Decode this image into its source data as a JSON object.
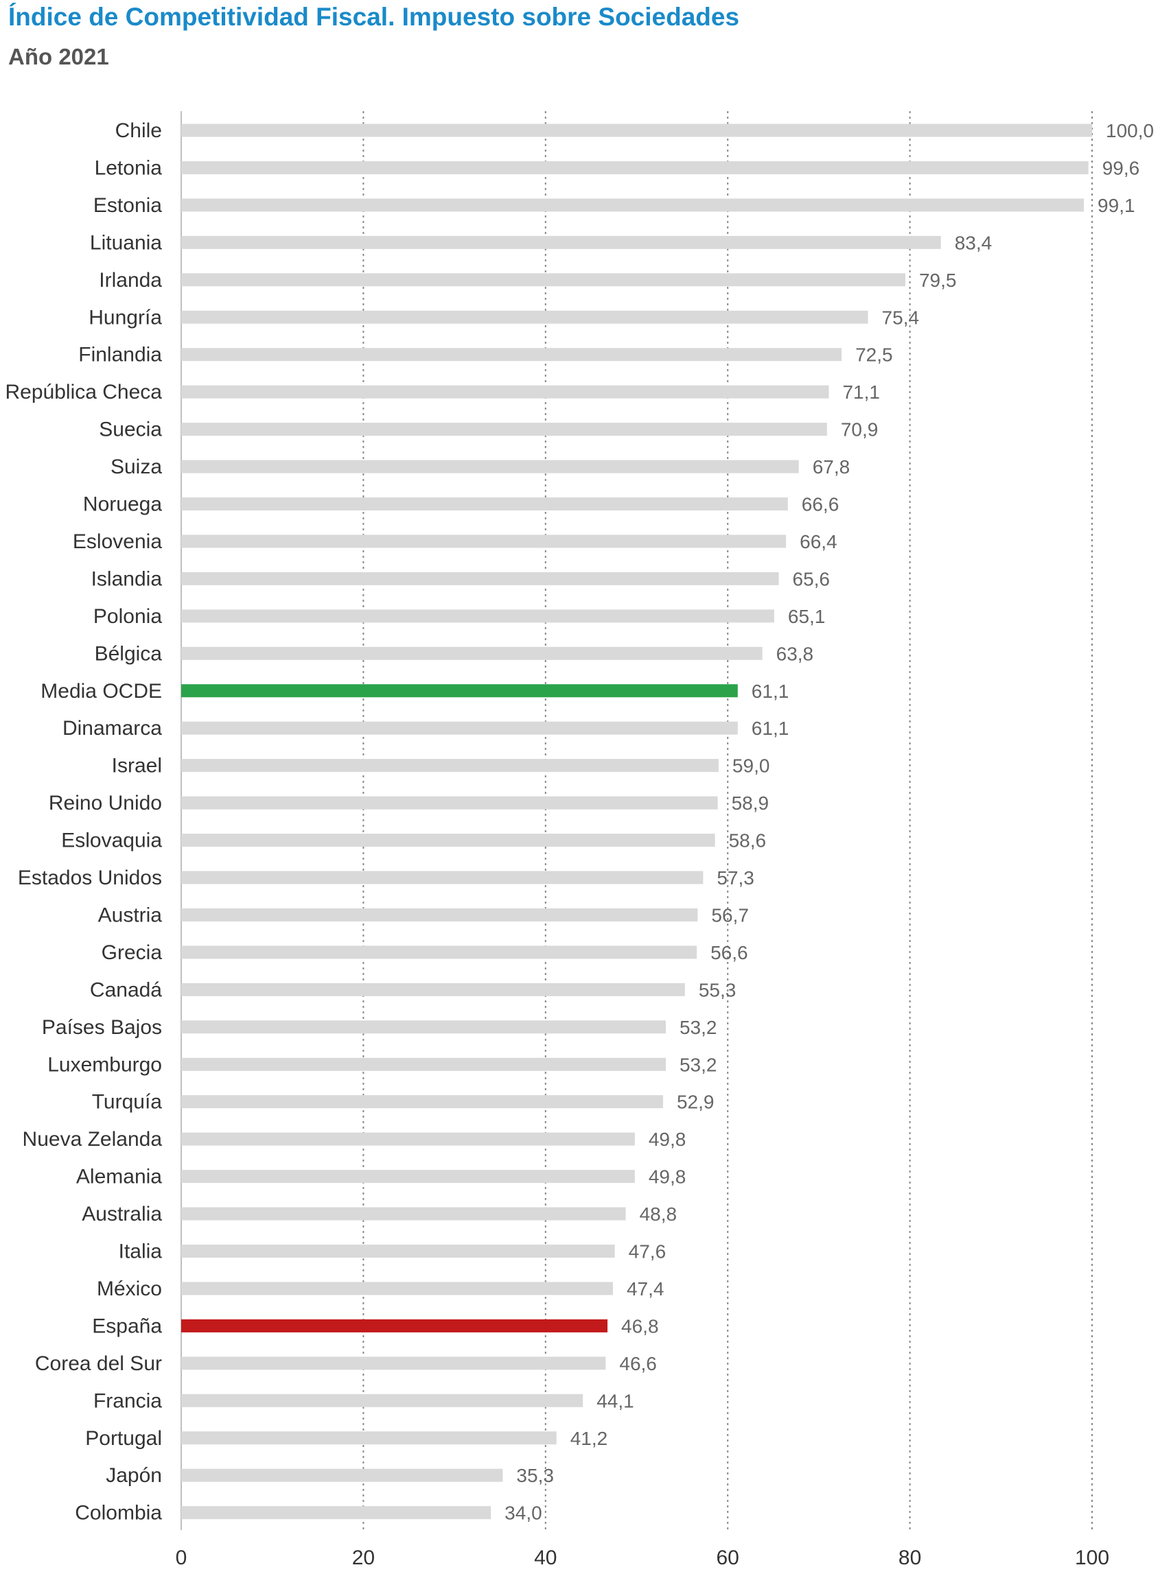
{
  "chart_data": {
    "type": "bar",
    "orientation": "horizontal",
    "title": "Índice de Competitividad Fiscal. Impuesto sobre Sociedades",
    "subtitle": "Año 2021",
    "xlim": [
      0,
      100
    ],
    "xticks": [
      0,
      20,
      40,
      60,
      80,
      100
    ],
    "grid": "vertical dotted",
    "categories": [
      "Chile",
      "Letonia",
      "Estonia",
      "Lituania",
      "Irlanda",
      "Hungría",
      "Finlandia",
      "República Checa",
      "Suecia",
      "Suiza",
      "Noruega",
      "Eslovenia",
      "Islandia",
      "Polonia",
      "Bélgica",
      "Media OCDE",
      "Dinamarca",
      "Israel",
      "Reino Unido",
      "Eslovaquia",
      "Estados Unidos",
      "Austria",
      "Grecia",
      "Canadá",
      "Países Bajos",
      "Luxemburgo",
      "Turquía",
      "Nueva Zelanda",
      "Alemania",
      "Australia",
      "Italia",
      "México",
      "España",
      "Corea del Sur",
      "Francia",
      "Portugal",
      "Japón",
      "Colombia"
    ],
    "values": [
      100.0,
      99.6,
      99.1,
      83.4,
      79.5,
      75.4,
      72.5,
      71.1,
      70.9,
      67.8,
      66.6,
      66.4,
      65.6,
      65.1,
      63.8,
      61.1,
      61.1,
      59.0,
      58.9,
      58.6,
      57.3,
      56.7,
      56.6,
      55.3,
      53.2,
      53.2,
      52.9,
      49.8,
      49.8,
      48.8,
      47.6,
      47.4,
      46.8,
      46.6,
      44.1,
      41.2,
      35.3,
      34.0
    ],
    "value_labels": [
      "100,0",
      "99,6",
      "99,1",
      "83,4",
      "79,5",
      "75,4",
      "72,5",
      "71,1",
      "70,9",
      "67,8",
      "66,6",
      "66,4",
      "65,6",
      "65,1",
      "63,8",
      "61,1",
      "61,1",
      "59,0",
      "58,9",
      "58,6",
      "57,3",
      "56,7",
      "56,6",
      "55,3",
      "53,2",
      "53,2",
      "52,9",
      "49,8",
      "49,8",
      "48,8",
      "47,6",
      "47,4",
      "46,8",
      "46,6",
      "44,1",
      "41,2",
      "35,3",
      "34,0"
    ],
    "colors": {
      "default": "#d9d9d9",
      "highlight": {
        "Media OCDE": "#2ba34a",
        "España": "#c21a1a"
      },
      "title": "#1a8ac9",
      "grid": "#888888"
    }
  }
}
